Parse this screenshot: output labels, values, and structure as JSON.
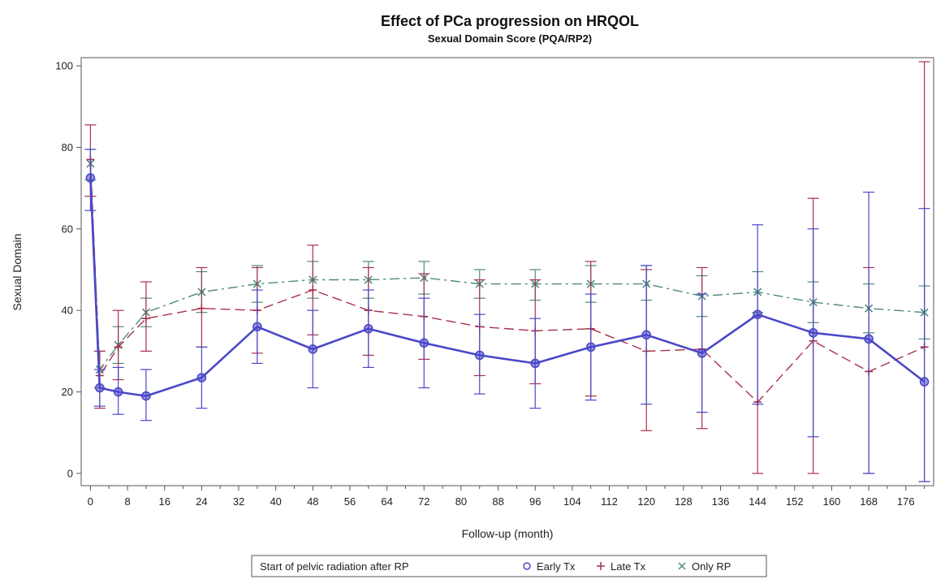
{
  "chart_data": {
    "type": "line",
    "title": "Effect of PCa progression on HRQOL",
    "subtitle": "Sexual Domain Score (PQA/RP2)",
    "xlabel": "Follow-up (month)",
    "ylabel": "Sexual Domain",
    "xlim": [
      -2,
      182
    ],
    "ylim": [
      -3,
      102
    ],
    "xticks": [
      0,
      8,
      16,
      24,
      32,
      40,
      48,
      56,
      64,
      72,
      80,
      88,
      96,
      104,
      112,
      120,
      128,
      136,
      144,
      152,
      160,
      168,
      176
    ],
    "yticks": [
      0,
      20,
      40,
      60,
      80,
      100
    ],
    "grid": false,
    "legend": {
      "position": "bottom",
      "title": "Start of pelvic radiation after RP",
      "entries": [
        "Early Tx",
        "Late Tx",
        "Only RP"
      ]
    },
    "series": [
      {
        "name": "Early Tx",
        "color": "#4a48c8",
        "style": "solid",
        "marker": "circle",
        "x": [
          0,
          2,
          6,
          12,
          24,
          36,
          48,
          60,
          72,
          84,
          96,
          108,
          120,
          132,
          144,
          156,
          168,
          180
        ],
        "y": [
          72.5,
          21,
          20,
          19,
          23.5,
          36,
          30.5,
          35.5,
          32,
          29,
          27,
          31,
          34,
          29.5,
          39,
          34.5,
          33,
          22.5
        ],
        "lower": [
          64.5,
          16.5,
          14.5,
          13,
          16,
          27,
          21,
          26,
          21,
          19.5,
          16,
          18,
          17,
          15,
          17,
          9,
          0,
          -2
        ],
        "upper": [
          79.5,
          25.5,
          26,
          25.5,
          31,
          45,
          40,
          45,
          43,
          39,
          38,
          44,
          51,
          44,
          61,
          60,
          69,
          65
        ]
      },
      {
        "name": "Late Tx",
        "color": "#a8324a",
        "style": "dashed",
        "marker": "plus",
        "x": [
          0,
          2,
          6,
          12,
          24,
          36,
          48,
          60,
          72,
          84,
          96,
          108,
          120,
          132,
          144,
          156,
          168,
          180
        ],
        "y": [
          77,
          24,
          31,
          38,
          40.5,
          40,
          45,
          40,
          38.5,
          36,
          35,
          35.5,
          30,
          30.5,
          17.5,
          32.5,
          25,
          31
        ],
        "lower": [
          68,
          16,
          23,
          30,
          31,
          29.5,
          34,
          29,
          28,
          24,
          22,
          19,
          10.5,
          11,
          0,
          0,
          0,
          -2
        ],
        "upper": [
          85.5,
          30,
          40,
          47,
          50.5,
          50.5,
          56,
          50.5,
          49,
          47.5,
          47.5,
          52,
          50,
          50.5,
          38.5,
          67.5,
          50.5,
          101
        ]
      },
      {
        "name": "Only RP",
        "color": "#4e8a78",
        "style": "dashdot",
        "marker": "x",
        "x": [
          0,
          2,
          6,
          12,
          24,
          36,
          48,
          60,
          72,
          84,
          96,
          108,
          120,
          132,
          144,
          156,
          168,
          180
        ],
        "y": [
          76,
          25.5,
          31.5,
          39.5,
          44.5,
          46.5,
          47.5,
          47.5,
          48,
          46.5,
          46.5,
          46.5,
          46.5,
          43.5,
          44.5,
          42,
          40.5,
          39.5
        ],
        "lower": [
          72,
          21,
          27,
          36,
          39.5,
          42,
          43,
          43,
          44,
          43,
          42.5,
          42,
          42.5,
          38.5,
          39.5,
          37,
          34.5,
          33
        ],
        "upper": [
          79.5,
          30,
          36,
          43,
          49.5,
          51,
          52,
          52,
          52,
          50,
          50,
          51,
          51,
          48.5,
          49.5,
          47,
          46.5,
          46
        ]
      }
    ]
  }
}
